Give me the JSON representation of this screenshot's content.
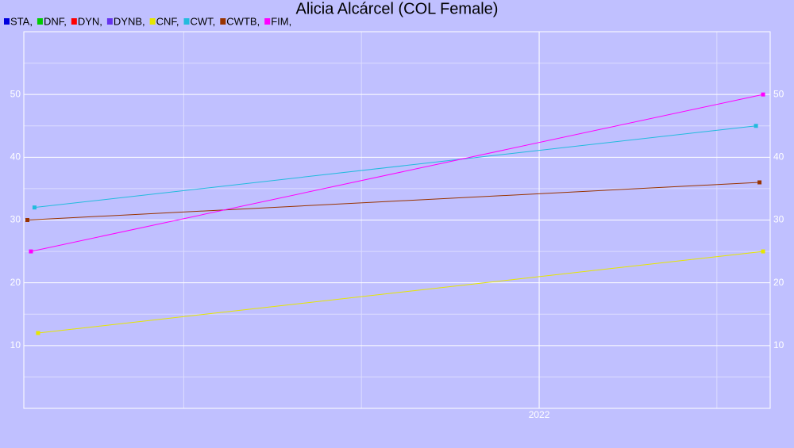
{
  "chart_data": {
    "type": "line",
    "title": "Alicia Alcárcel (COL Female)",
    "xlim": [
      2020.55,
      2022.65
    ],
    "xticks": [
      2022
    ],
    "xgrid": [
      2021,
      2021.5,
      2022,
      2022.5
    ],
    "ylim": [
      0,
      60
    ],
    "yticks": [
      10,
      20,
      30,
      40,
      50
    ],
    "yminor": [
      5,
      15,
      25,
      35,
      45,
      55
    ],
    "grid": true,
    "legend": "top-left",
    "right_axis": true,
    "series": [
      {
        "name": "STA,",
        "color": "#0000dd",
        "x": [],
        "values": []
      },
      {
        "name": "DNF,",
        "color": "#00cc00",
        "x": [],
        "values": []
      },
      {
        "name": "DYN,",
        "color": "#ff0000",
        "x": [],
        "values": []
      },
      {
        "name": "DYNB,",
        "color": "#6633ee",
        "x": [],
        "values": []
      },
      {
        "name": "CNF,",
        "color": "#e6e600",
        "x": [
          2020.59,
          2022.63
        ],
        "values": [
          12,
          25
        ]
      },
      {
        "name": "CWT,",
        "color": "#22bbdd",
        "x": [
          2020.58,
          2022.61
        ],
        "values": [
          32,
          45
        ]
      },
      {
        "name": "CWTB,",
        "color": "#993300",
        "x": [
          2020.56,
          2022.62
        ],
        "values": [
          30,
          36
        ]
      },
      {
        "name": "FIM,",
        "color": "#ff00ff",
        "x": [
          2020.57,
          2022.63
        ],
        "values": [
          25,
          50
        ]
      }
    ]
  }
}
